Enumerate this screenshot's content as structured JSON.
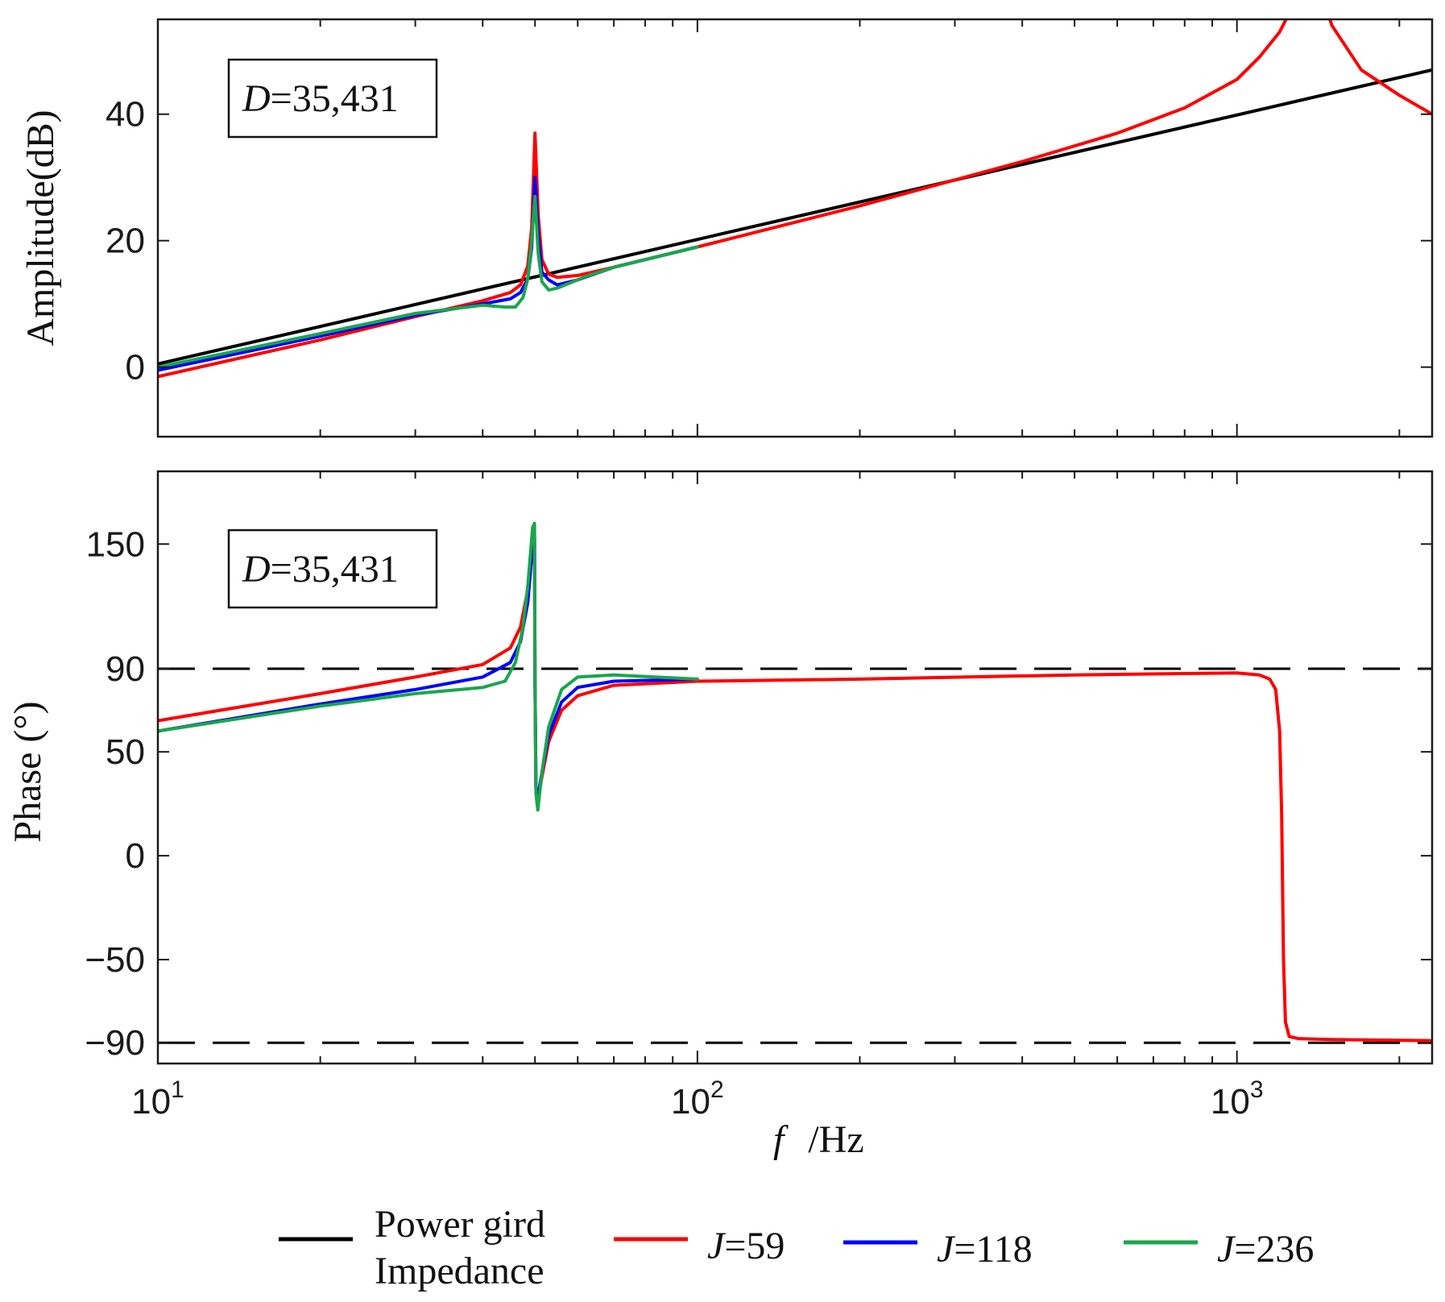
{
  "chart_data": [
    {
      "type": "line",
      "panel": "top",
      "ylabel": "Amplitude(dB)",
      "xscale": "log",
      "xlim": [
        10,
        2300
      ],
      "ylim": [
        -11,
        55
      ],
      "yticks": [
        0,
        20,
        40
      ],
      "annotation": {
        "var": "D",
        "value": "=35,431"
      },
      "series": [
        {
          "name": "Power gird Impedance",
          "color": "#000000",
          "x": [
            10,
            2300
          ],
          "y": [
            0.5,
            47.0
          ]
        },
        {
          "name": "J=59",
          "color": "#ff0000",
          "x": [
            10,
            20,
            30,
            40,
            45,
            47,
            48.5,
            49.3,
            50,
            50.7,
            51.5,
            53,
            55,
            60,
            70,
            100,
            200,
            400,
            600,
            800,
            1000,
            1100,
            1200,
            1250,
            1290,
            1300,
            1400,
            1420,
            1500,
            1700,
            2000,
            2300
          ],
          "y": [
            -1.5,
            4.3,
            8.0,
            10.5,
            11.8,
            13.0,
            16.0,
            22.0,
            37.0,
            24.0,
            17.0,
            14.7,
            14.2,
            14.5,
            15.8,
            19.0,
            25.5,
            32.5,
            37.0,
            41.0,
            45.5,
            49.0,
            53.0,
            56.0,
            60.0,
            null,
            null,
            60.0,
            54.0,
            47.0,
            43.0,
            40.0
          ]
        },
        {
          "name": "J=118",
          "color": "#0000ff",
          "x": [
            10,
            20,
            30,
            40,
            45,
            47,
            48.5,
            49.3,
            50,
            50.7,
            51.5,
            53,
            55,
            60,
            70,
            100
          ],
          "y": [
            -0.5,
            4.9,
            8.2,
            10.0,
            10.8,
            11.8,
            14.0,
            19.0,
            30.0,
            21.0,
            15.0,
            13.8,
            13.0,
            13.8,
            15.8,
            19.0
          ]
        },
        {
          "name": "J=236",
          "color": "#1aa64b",
          "x": [
            10,
            20,
            30,
            40,
            44,
            46,
            47.5,
            48.5,
            49.3,
            50,
            50.7,
            51.5,
            53,
            55,
            58,
            62,
            70,
            100
          ],
          "y": [
            0.0,
            5.3,
            8.5,
            9.8,
            9.5,
            9.5,
            11.0,
            14.0,
            20.0,
            27.0,
            18.0,
            13.5,
            12.2,
            12.5,
            13.3,
            14.3,
            15.8,
            19.0
          ]
        }
      ]
    },
    {
      "type": "line",
      "panel": "bottom",
      "ylabel": "Phase (°)",
      "xlabel_var": "f",
      "xlabel_unit": "/Hz",
      "xscale": "log",
      "xlim": [
        10,
        2300
      ],
      "ylim": [
        -100,
        185
      ],
      "yticks": [
        -90,
        -50,
        0,
        50,
        90,
        150
      ],
      "xtick_base": "10",
      "xtick_exps": [
        "1",
        "2",
        "3"
      ],
      "annotation": {
        "var": "D",
        "value": "=35,431"
      },
      "series": [
        {
          "name": "90 reference",
          "color": "#000000",
          "dashed": true,
          "x": [
            10,
            2300
          ],
          "y": [
            90,
            90
          ]
        },
        {
          "name": "-90 reference",
          "color": "#000000",
          "dashed": true,
          "x": [
            10,
            2300
          ],
          "y": [
            -90,
            -90
          ]
        },
        {
          "name": "J=59",
          "color": "#ff0000",
          "x": [
            10,
            20,
            30,
            40,
            45,
            47,
            48.5,
            49.5,
            49.9,
            50.0,
            50.2,
            50.6,
            51.5,
            53,
            56,
            60,
            70,
            100,
            200,
            500,
            1000,
            1100,
            1150,
            1180,
            1200,
            1210,
            1220,
            1230,
            1250,
            1300,
            1500,
            2300
          ],
          "y": [
            65,
            78,
            86,
            92,
            100,
            110,
            128,
            150,
            153,
            85,
            32,
            26,
            38,
            55,
            70,
            77,
            82,
            84,
            85,
            87,
            88,
            87,
            85,
            80,
            60,
            20,
            -50,
            -80,
            -87,
            -88,
            -88.5,
            -89
          ]
        },
        {
          "name": "J=118",
          "color": "#0000ff",
          "x": [
            10,
            20,
            30,
            40,
            45,
            47,
            48.5,
            49.5,
            49.9,
            50.0,
            50.2,
            50.6,
            51.5,
            53,
            56,
            60,
            70,
            100
          ],
          "y": [
            60,
            73,
            80,
            86,
            93,
            103,
            122,
            150,
            155,
            85,
            33,
            28,
            40,
            58,
            74,
            81,
            84,
            85
          ]
        },
        {
          "name": "J=236",
          "color": "#1aa64b",
          "x": [
            10,
            20,
            30,
            40,
            44,
            46,
            47.5,
            48.5,
            49.5,
            49.9,
            50.0,
            50.2,
            50.6,
            51.5,
            53,
            56,
            60,
            70,
            100
          ],
          "y": [
            60,
            72,
            78,
            81,
            84,
            93,
            110,
            130,
            158,
            160,
            85,
            30,
            22,
            40,
            62,
            80,
            86,
            87,
            85
          ]
        }
      ]
    }
  ],
  "legend": [
    {
      "label": "Power gird",
      "label2": "Impedance",
      "color": "#000000"
    },
    {
      "var": "J",
      "value": "=59",
      "color": "#ff0000"
    },
    {
      "var": "J",
      "value": "=118",
      "color": "#0000ff"
    },
    {
      "var": "J",
      "value": "=236",
      "color": "#1aa64b"
    }
  ]
}
